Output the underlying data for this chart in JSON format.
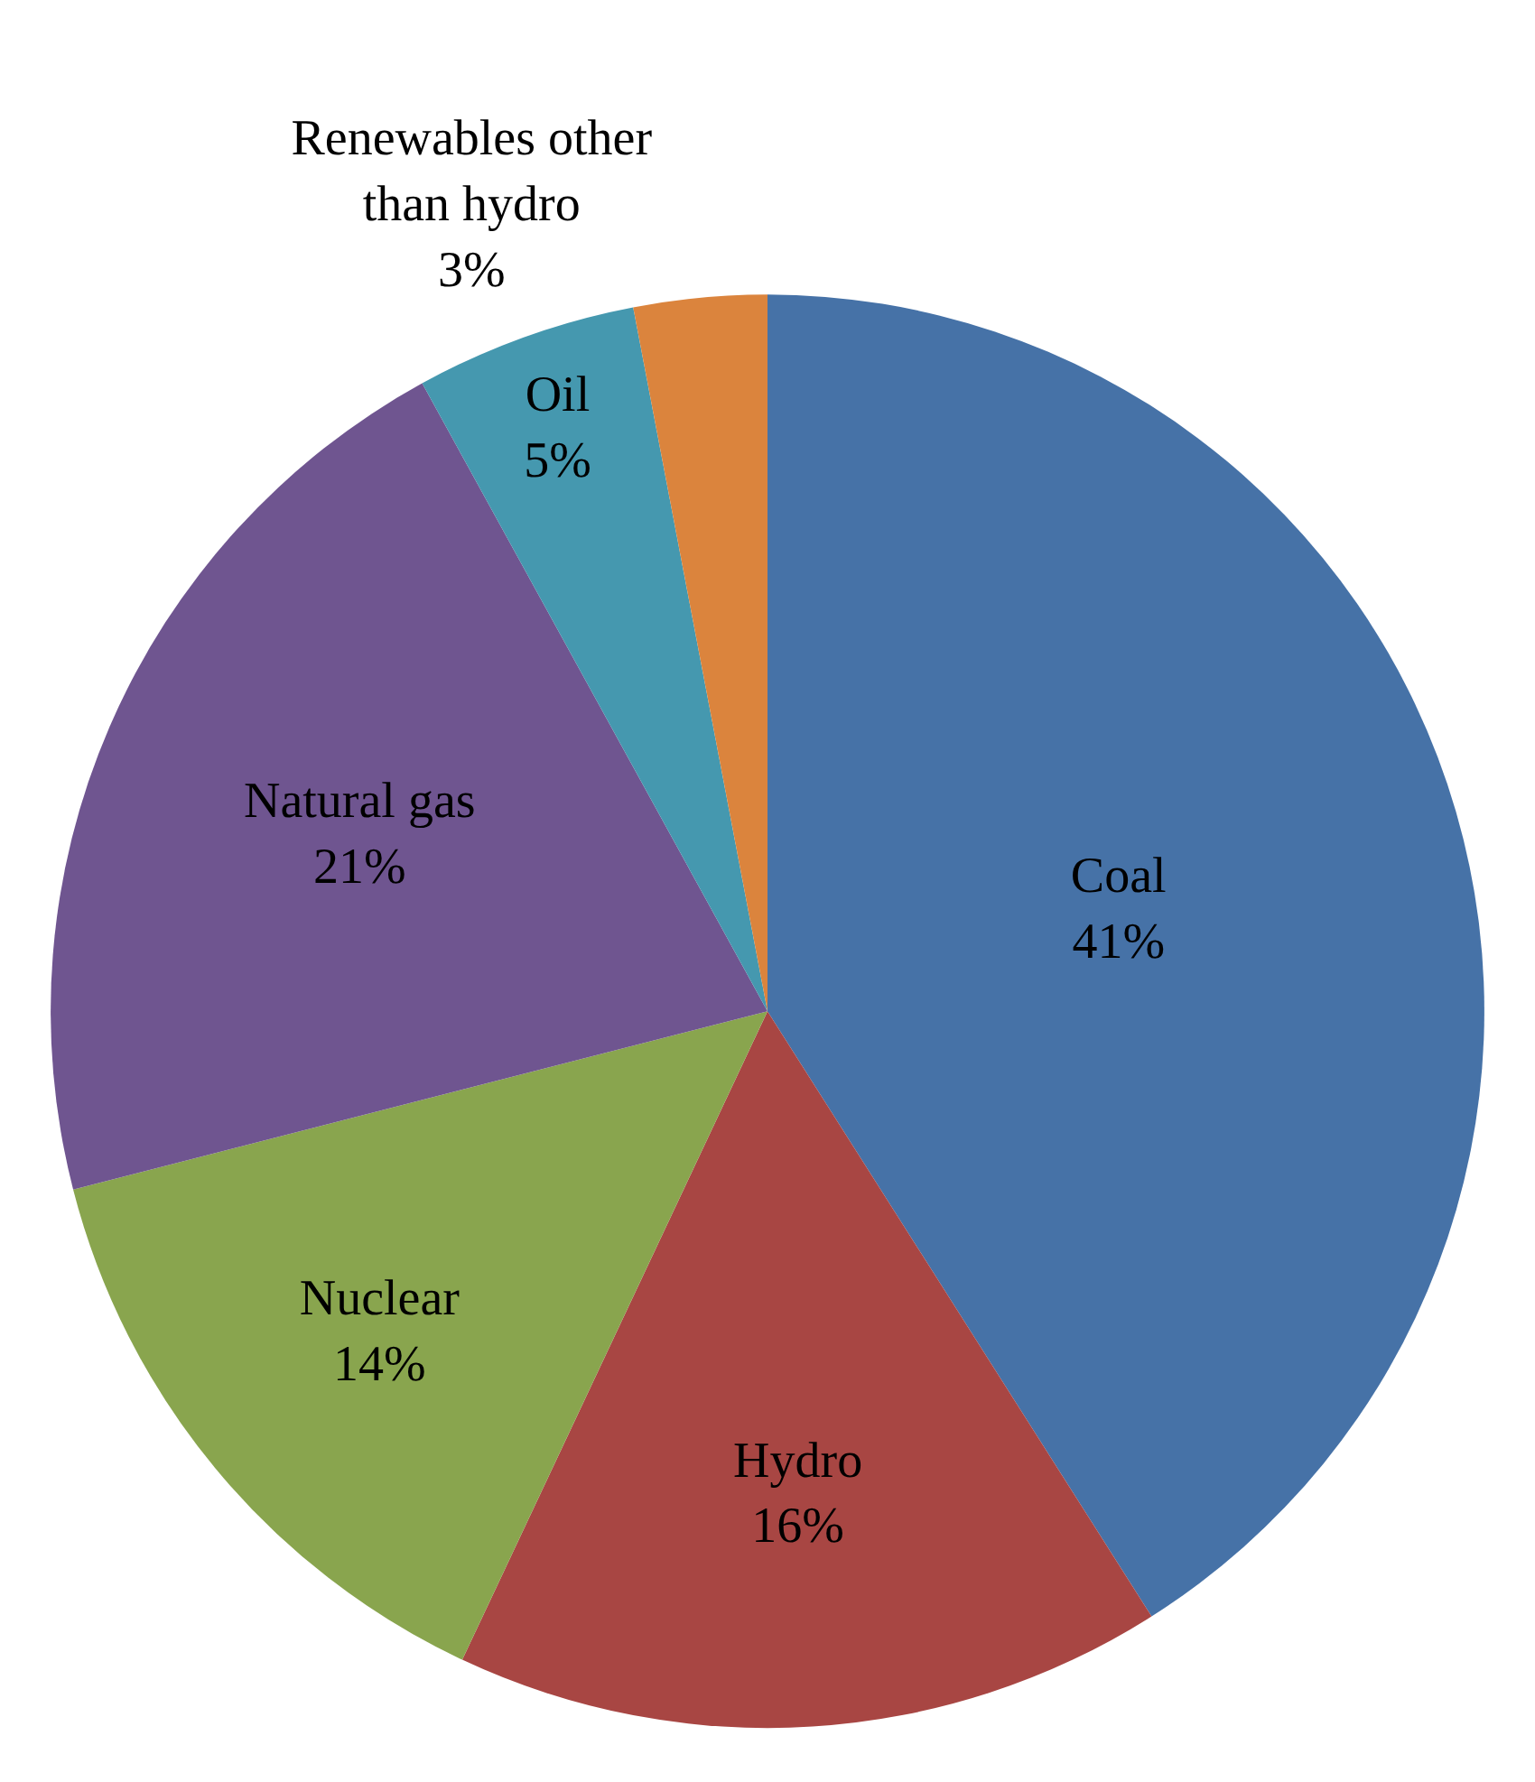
{
  "chart_data": {
    "type": "pie",
    "categories": [
      "Coal",
      "Hydro",
      "Nuclear",
      "Natural gas",
      "Oil",
      "Renewables other than hydro"
    ],
    "values": [
      41,
      16,
      14,
      21,
      5,
      3
    ],
    "colors": [
      "#4672a7",
      "#a84643",
      "#89a54e",
      "#6f5590",
      "#4598af",
      "#db843d"
    ],
    "value_labels": [
      "41%",
      "16%",
      "14%",
      "21%",
      "5%",
      "3%"
    ],
    "legend": false
  }
}
